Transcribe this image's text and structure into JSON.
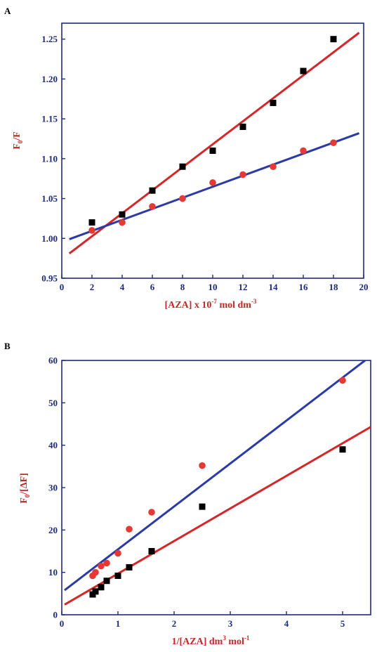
{
  "chart_data": [
    {
      "panel": "A",
      "type": "scatter",
      "xlabel": "[AZA] x 10",
      "xlabel_sup": "-7",
      "xlabel_rest": " mol dm",
      "xlabel_sup2": "-3",
      "ylabel_main": "F",
      "ylabel_sub": "0",
      "ylabel_rest": "/F",
      "xlim": [
        0,
        20
      ],
      "ylim": [
        0.95,
        1.27
      ],
      "xticks": [
        "0",
        "2",
        "4",
        "6",
        "8",
        "10",
        "12",
        "14",
        "16",
        "18",
        "20"
      ],
      "yticks": [
        "0.95",
        "1.00",
        "1.05",
        "1.10",
        "1.15",
        "1.20",
        "1.25"
      ],
      "grid": false,
      "series": [
        {
          "marker": "square",
          "color": "#000000",
          "x": [
            2,
            4,
            6,
            8,
            10,
            12,
            14,
            16,
            18
          ],
          "y": [
            1.02,
            1.03,
            1.06,
            1.09,
            1.11,
            1.14,
            1.17,
            1.21,
            1.25
          ],
          "fit": {
            "color": "#d62728",
            "x": [
              0.5,
              19.7
            ],
            "y": [
              0.981,
              1.258
            ]
          }
        },
        {
          "marker": "circle",
          "color": "#e53935",
          "x": [
            2,
            4,
            6,
            8,
            10,
            12,
            14,
            16,
            18
          ],
          "y": [
            1.01,
            1.02,
            1.04,
            1.05,
            1.07,
            1.08,
            1.09,
            1.11,
            1.12
          ],
          "fit": {
            "color": "#2a3aa8",
            "x": [
              0.5,
              19.7
            ],
            "y": [
              0.999,
              1.132
            ]
          }
        }
      ]
    },
    {
      "panel": "B",
      "type": "scatter",
      "xlabel": "1/[AZA] dm",
      "xlabel_sup": "3",
      "xlabel_rest": " mol",
      "xlabel_sup2": "-1",
      "ylabel_main": "F",
      "ylabel_sub": "0",
      "ylabel_rest": "/[ΔF]",
      "xlim": [
        0,
        5.5
      ],
      "ylim": [
        0,
        60
      ],
      "xticks": [
        "0",
        "1",
        "2",
        "3",
        "4",
        "5"
      ],
      "yticks": [
        "0",
        "10",
        "20",
        "30",
        "40",
        "50",
        "60"
      ],
      "grid": false,
      "series": [
        {
          "marker": "circle",
          "color": "#e53935",
          "x": [
            0.55,
            0.6,
            0.7,
            0.8,
            1.0,
            1.2,
            1.6,
            2.5,
            5.0
          ],
          "y": [
            9.2,
            10.0,
            11.5,
            12.2,
            14.5,
            20.2,
            24.2,
            35.2,
            55.3
          ],
          "fit": {
            "color": "#2a3aa8",
            "x": [
              0.05,
              5.4
            ],
            "y": [
              5.8,
              60.0
            ]
          }
        },
        {
          "marker": "square",
          "color": "#000000",
          "x": [
            0.55,
            0.6,
            0.7,
            0.8,
            1.0,
            1.2,
            1.6,
            2.5,
            5.0
          ],
          "y": [
            4.8,
            5.5,
            6.5,
            8.0,
            9.2,
            11.2,
            15.0,
            25.5,
            39.0
          ],
          "fit": {
            "color": "#d62728",
            "x": [
              0.05,
              5.5
            ],
            "y": [
              2.4,
              44.3
            ]
          }
        }
      ]
    }
  ]
}
